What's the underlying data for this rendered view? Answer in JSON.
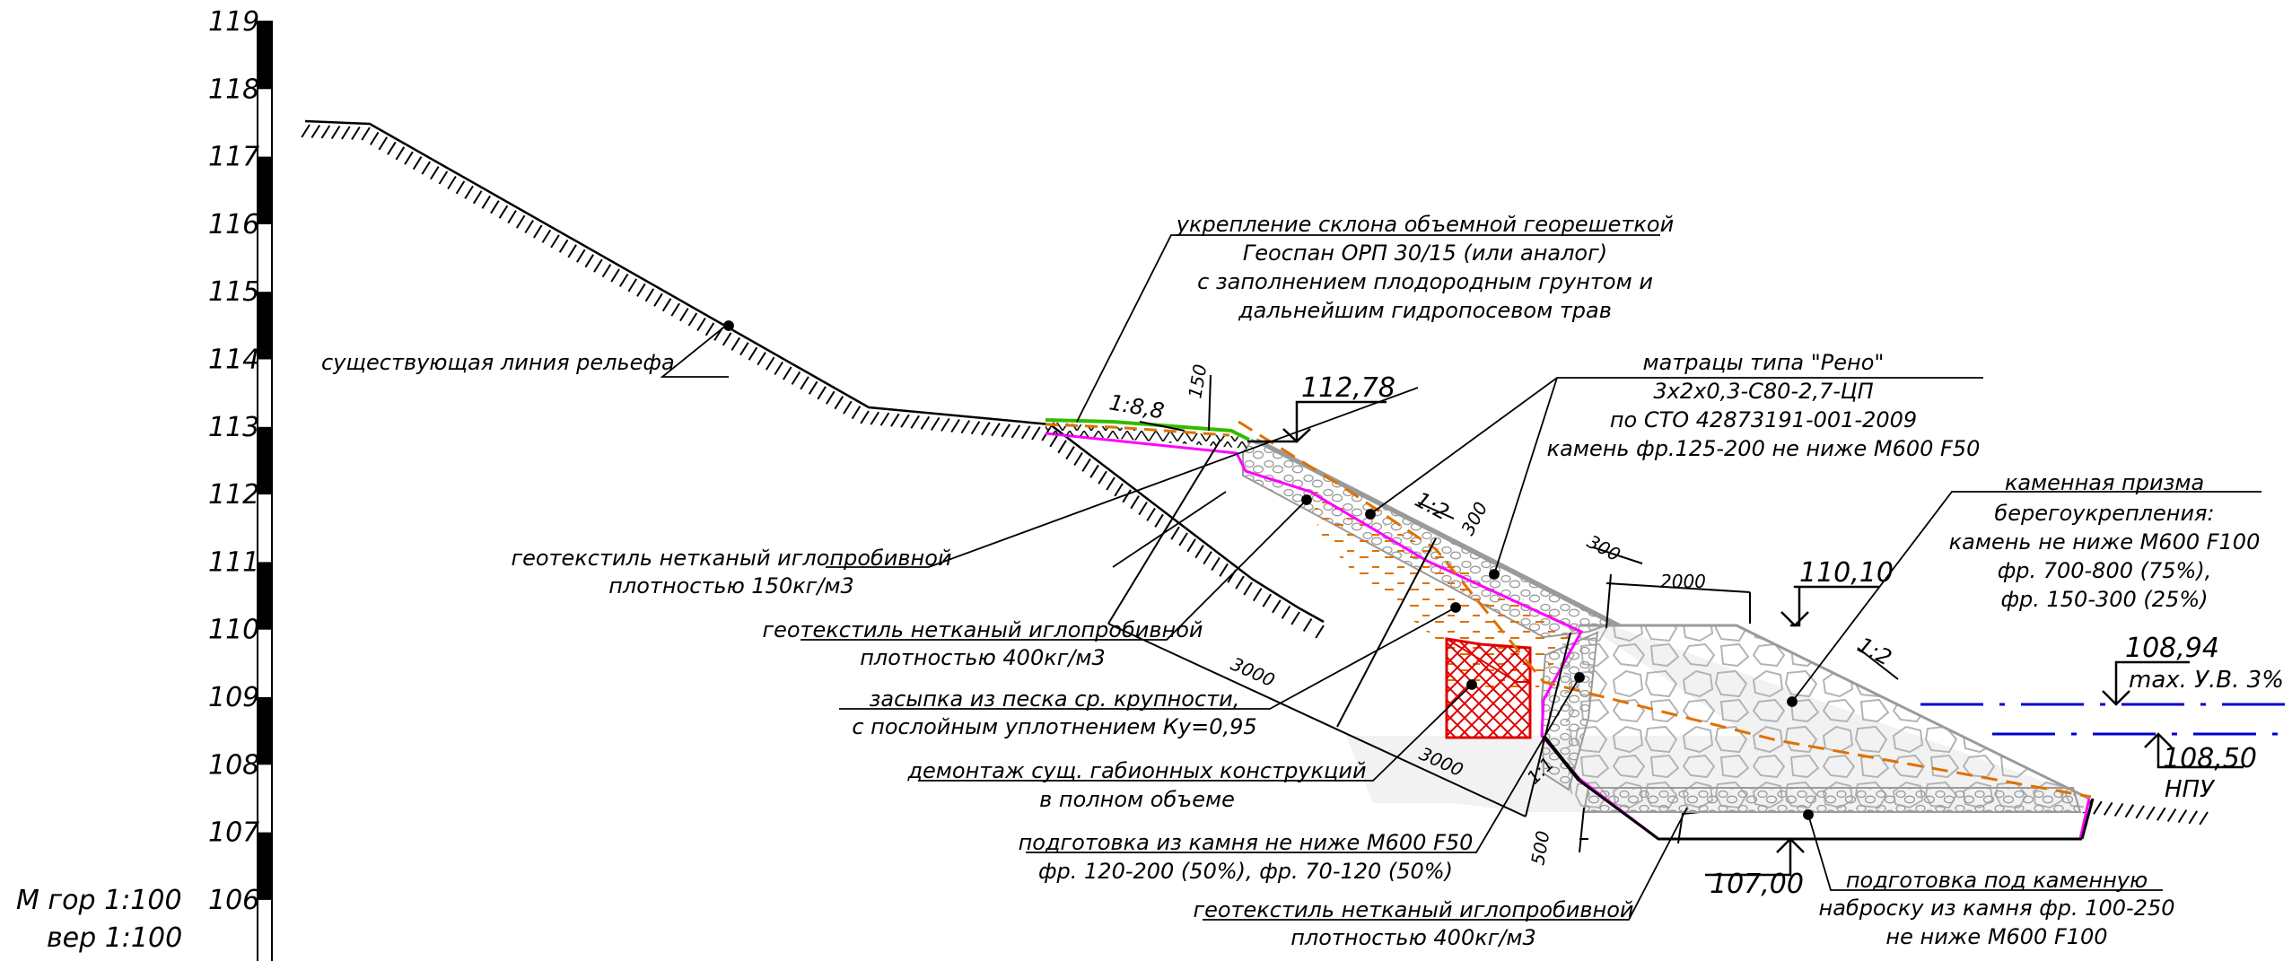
{
  "scale": {
    "ticks": [
      "119",
      "118",
      "117",
      "116",
      "115",
      "114",
      "113",
      "112",
      "111",
      "110",
      "109",
      "108",
      "107",
      "106"
    ],
    "scale_h": "М гор 1:100",
    "scale_v": "вер 1:100"
  },
  "callouts": {
    "relief": "существующая линия рельефа",
    "georeshetka": [
      "укрепление склона объемной георешеткой",
      "Геоспан ОРП 30/15 (или аналог)",
      "с заполнением плодородным грунтом и",
      "дальнейшим гидропосевом трав"
    ],
    "reno": [
      "матрацы типа \"Рено\"",
      "3х2х0,3-С80-2,7-ЦП",
      "по СТО 42873191-001-2009",
      "камень фр.125-200 не ниже М600 F50"
    ],
    "prism": [
      "каменная призма",
      "берегоукрепления:",
      "камень не ниже М600 F100",
      "фр. 700-800 (75%),",
      "фр. 150-300 (25%)"
    ],
    "geotex150": [
      "геотекстиль нетканый иглопробивной",
      "плотностью 150кг/м3"
    ],
    "geotex400": [
      "геотекстиль нетканый иглопробивной",
      "плотностью 400кг/м3"
    ],
    "sand": [
      "засыпка из песка ср. крупности,",
      "с послойным уплотнением Ку=0,95"
    ],
    "dismantle": [
      "демонтаж сущ. габионных конструкций",
      "в полном объеме"
    ],
    "prep_stone": [
      "подготовка из камня не ниже М600 F50",
      "фр. 120-200 (50%), фр. 70-120 (50%)"
    ],
    "geotex400_bottom": [
      "геотекстиль нетканый иглопробивной",
      "плотностью 400кг/м3"
    ],
    "prep_under": [
      "подготовка под каменную",
      "наброску из камня фр. 100-250",
      "не ниже М600 F100"
    ]
  },
  "elevations": {
    "top": "112,78",
    "berm": "110,10",
    "max_level": "108,94",
    "max_level_label": "max. У.В. 3%",
    "npu": "108,50",
    "npu_label": "НПУ",
    "bottom": "107,00"
  },
  "dimensions": {
    "slope_top": "1:8,8",
    "d150": "150",
    "slope_reno": "1:2",
    "d300_a": "300",
    "d300_b": "300",
    "d2000": "2000",
    "slope_prism": "1:2",
    "d3000_a": "3000",
    "d3000_b": "3000",
    "slope_1_1": "1:1",
    "d500": "500"
  },
  "colors": {
    "line": "#000000",
    "prism_fill": "#ececec",
    "stone": "#9a9a9a",
    "geotextile": "#ff00ff",
    "sand": "#e07000",
    "demolish": "#e00000",
    "grass": "#33bb00",
    "water": "#0000cc"
  }
}
